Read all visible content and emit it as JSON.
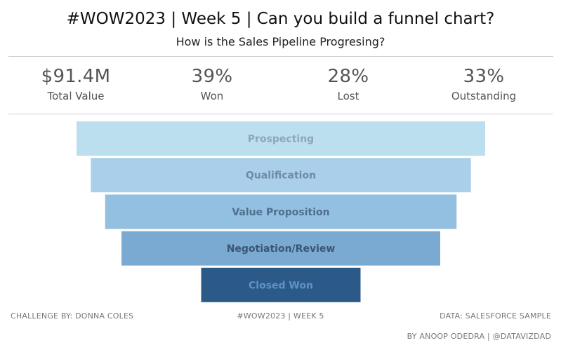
{
  "header": {
    "title": "#WOW2023 | Week 5 | Can you build a funnel chart?",
    "subtitle": "How is the Sales Pipeline Progresing?"
  },
  "kpis": [
    {
      "value": "$91.4M",
      "label": "Total Value"
    },
    {
      "value": "39%",
      "label": "Won"
    },
    {
      "value": "28%",
      "label": "Lost"
    },
    {
      "value": "33%",
      "label": "Outstanding"
    }
  ],
  "chart_data": {
    "type": "bar",
    "subtype": "funnel",
    "categories": [
      "Prospecting",
      "Qualification",
      "Value Proposition",
      "Negotiation/Review",
      "Closed Won"
    ],
    "values": [
      1.0,
      0.93,
      0.86,
      0.78,
      0.39
    ],
    "colors": [
      "#bcdff0",
      "#a9cfea",
      "#93bfe0",
      "#7aaad2",
      "#2b5988"
    ],
    "label_colors": [
      "#8fa6b8",
      "#6f8aa3",
      "#4f6f8d",
      "#3b5572",
      "#5f93c9"
    ]
  },
  "footer": {
    "left": "CHALLENGE BY: DONNA COLES",
    "center": "#WOW2023 | WEEK 5",
    "right": "DATA: SALESFORCE SAMPLE",
    "credit": "BY ANOOP ODEDRA | @DATAVIZDAD"
  }
}
